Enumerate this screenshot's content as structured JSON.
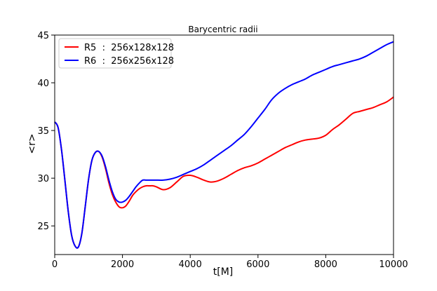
{
  "chart_data": {
    "type": "line",
    "title": "Barycentric radii",
    "xlabel": "t[M]",
    "ylabel": "<r>",
    "xlim": [
      0,
      10000
    ],
    "ylim": [
      22,
      45
    ],
    "xticks": [
      0,
      2000,
      4000,
      6000,
      8000,
      10000
    ],
    "yticks": [
      25,
      30,
      35,
      40,
      45
    ],
    "grid": false,
    "legend_position": "top-left",
    "series": [
      {
        "name": "R5  :  256x128x128",
        "color": "#ff0000",
        "x": [
          0,
          100,
          200,
          300,
          400,
          500,
          600,
          700,
          800,
          900,
          1000,
          1100,
          1200,
          1300,
          1400,
          1500,
          1600,
          1700,
          1800,
          1900,
          2000,
          2100,
          2200,
          2300,
          2400,
          2500,
          2600,
          2700,
          2800,
          2900,
          3000,
          3200,
          3400,
          3600,
          3800,
          4000,
          4200,
          4400,
          4600,
          4800,
          5000,
          5200,
          5400,
          5600,
          5800,
          6000,
          6200,
          6400,
          6600,
          6800,
          7000,
          7200,
          7400,
          7600,
          7800,
          8000,
          8200,
          8400,
          8600,
          8800,
          9000,
          9200,
          9400,
          9600,
          9800,
          10000
        ],
        "y": [
          35.9,
          35.3,
          33.0,
          29.8,
          26.5,
          24.0,
          22.9,
          22.8,
          24.2,
          27.0,
          29.9,
          31.9,
          32.7,
          32.8,
          32.2,
          31.0,
          29.5,
          28.3,
          27.5,
          27.0,
          26.9,
          27.1,
          27.6,
          28.2,
          28.6,
          28.9,
          29.1,
          29.2,
          29.2,
          29.2,
          29.1,
          28.8,
          29.0,
          29.6,
          30.2,
          30.3,
          30.1,
          29.8,
          29.6,
          29.7,
          30.0,
          30.4,
          30.8,
          31.1,
          31.3,
          31.6,
          32.0,
          32.4,
          32.8,
          33.2,
          33.5,
          33.8,
          34.0,
          34.1,
          34.2,
          34.5,
          35.1,
          35.6,
          36.2,
          36.8,
          37.0,
          37.2,
          37.4,
          37.7,
          38.0,
          38.5
        ]
      },
      {
        "name": "R6  :  256x256x128",
        "color": "#0000ff",
        "x": [
          0,
          100,
          200,
          300,
          400,
          500,
          600,
          700,
          800,
          900,
          1000,
          1100,
          1200,
          1300,
          1400,
          1500,
          1600,
          1700,
          1800,
          1900,
          2000,
          2100,
          2200,
          2300,
          2400,
          2500,
          2600,
          2700,
          2800,
          2900,
          3000,
          3200,
          3400,
          3600,
          3800,
          4000,
          4200,
          4400,
          4600,
          4800,
          5000,
          5200,
          5400,
          5600,
          5800,
          6000,
          6200,
          6400,
          6600,
          6800,
          7000,
          7200,
          7400,
          7600,
          7800,
          8000,
          8200,
          8400,
          8600,
          8800,
          9000,
          9200,
          9400,
          9600,
          9800,
          10000
        ],
        "y": [
          35.9,
          35.3,
          33.0,
          29.8,
          26.5,
          24.0,
          22.9,
          22.8,
          24.2,
          27.0,
          29.9,
          31.9,
          32.7,
          32.8,
          32.3,
          31.2,
          29.8,
          28.6,
          27.8,
          27.5,
          27.5,
          27.7,
          28.1,
          28.6,
          29.1,
          29.5,
          29.8,
          29.8,
          29.8,
          29.8,
          29.8,
          29.8,
          29.9,
          30.1,
          30.4,
          30.7,
          31.0,
          31.4,
          31.9,
          32.4,
          32.9,
          33.4,
          34.0,
          34.6,
          35.4,
          36.3,
          37.2,
          38.2,
          38.9,
          39.4,
          39.8,
          40.1,
          40.4,
          40.8,
          41.1,
          41.4,
          41.7,
          41.9,
          42.1,
          42.3,
          42.5,
          42.8,
          43.2,
          43.6,
          44.0,
          44.3
        ]
      }
    ]
  }
}
